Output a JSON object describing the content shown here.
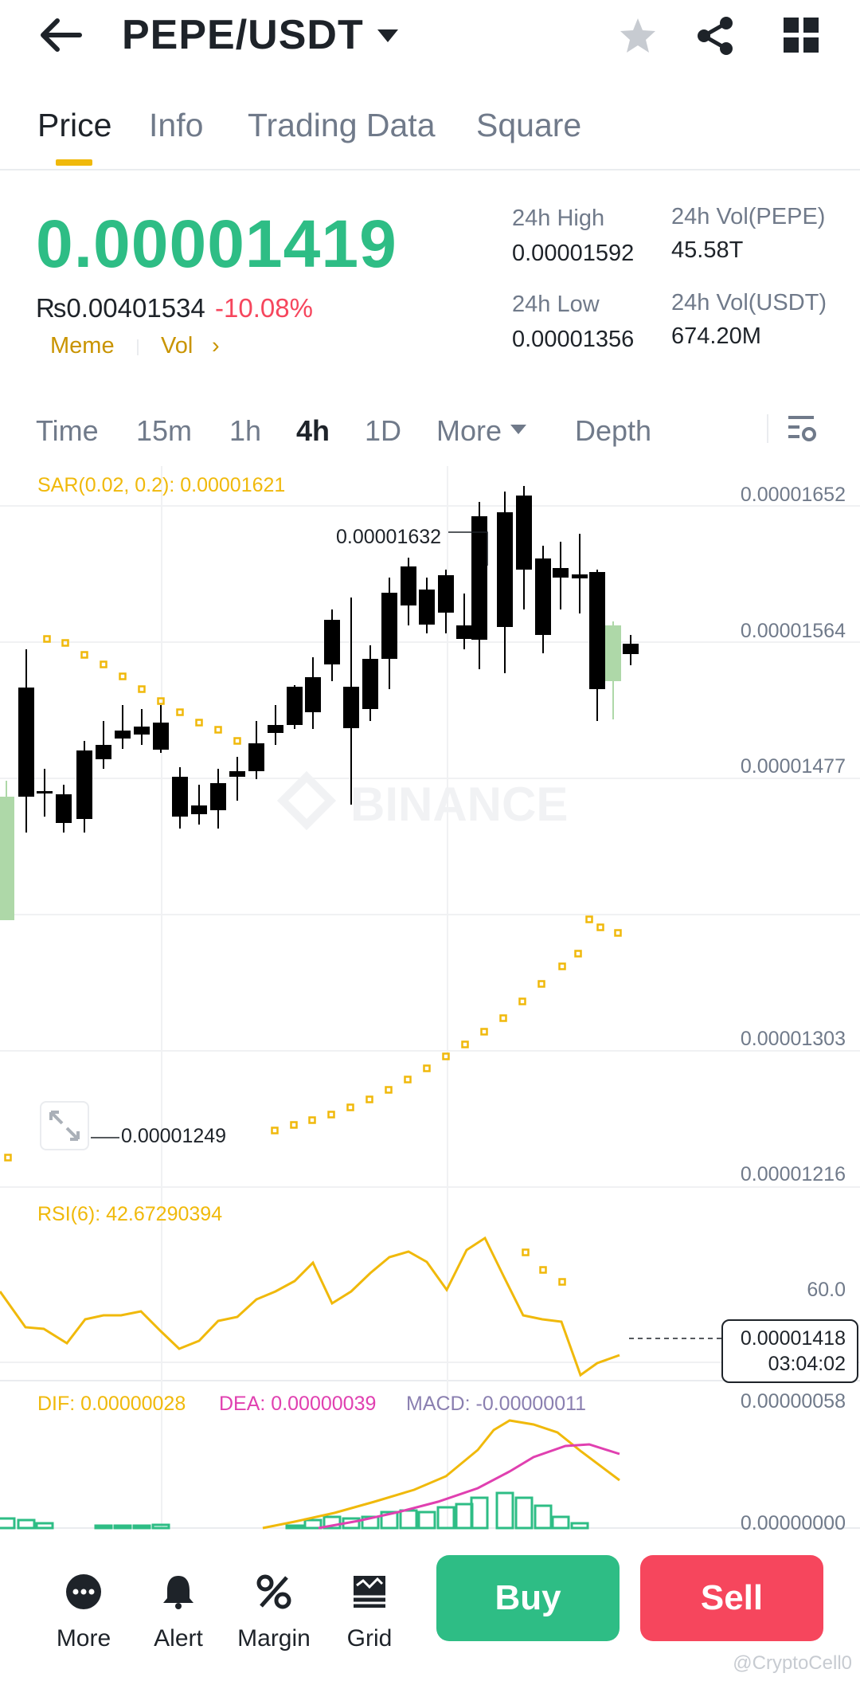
{
  "header": {
    "pair": "PEPE/USDT",
    "icons": [
      "back-arrow-icon",
      "caret-down-icon",
      "star-icon",
      "share-icon",
      "grid-icon"
    ]
  },
  "tabs": [
    {
      "label": "Price",
      "active": true
    },
    {
      "label": "Info",
      "active": false
    },
    {
      "label": "Trading Data",
      "active": false
    },
    {
      "label": "Square",
      "active": false
    }
  ],
  "ticker": {
    "last_price": "0.00001419",
    "fiat_price": "₨0.00401534",
    "change_pct": "-10.08%",
    "tag_meme": "Meme",
    "tag_vol": "Vol",
    "high_label": "24h High",
    "high_value": "0.00001592",
    "low_label": "24h Low",
    "low_value": "0.00001356",
    "vol_pepe_label": "24h Vol(PEPE)",
    "vol_pepe_value": "45.58T",
    "vol_usdt_label": "24h Vol(USDT)",
    "vol_usdt_value": "674.20M"
  },
  "intervals": {
    "items": [
      "Time",
      "15m",
      "1h",
      "4h",
      "1D",
      "More"
    ],
    "active": "4h",
    "depth": "Depth"
  },
  "chart": {
    "sar_label": "SAR(0.02, 0.2): 0.00001621",
    "y_ticks": [
      "0.00001652",
      "0.00001564",
      "0.00001477",
      "0.00001303",
      "0.00001216"
    ],
    "high_marker": "0.00001632",
    "low_marker": "0.00001249",
    "current_price": "0.00001418",
    "countdown": "03:04:02",
    "rsi_label": "RSI(6): 42.67290394",
    "rsi_tick": "60.0",
    "dif_label": "DIF: 0.00000028",
    "dea_label": "DEA: 0.00000039",
    "macd_label": "MACD: -0.00000011",
    "macd_ticks": [
      "0.00000058",
      "0.00000000"
    ],
    "watermark_text": "BINANCE",
    "colors": {
      "up": "#aed8a8",
      "down": "#000000",
      "sar": "#f0b90b",
      "rsi": "#f0b90b",
      "dif": "#f0b90b",
      "dea": "#e040b0",
      "macd_bar": "#2ebd85"
    }
  },
  "bottom_bar": {
    "more": "More",
    "alert": "Alert",
    "margin": "Margin",
    "grid": "Grid",
    "buy": "Buy",
    "sell": "Sell",
    "watermark": "@CryptoCell0"
  }
}
